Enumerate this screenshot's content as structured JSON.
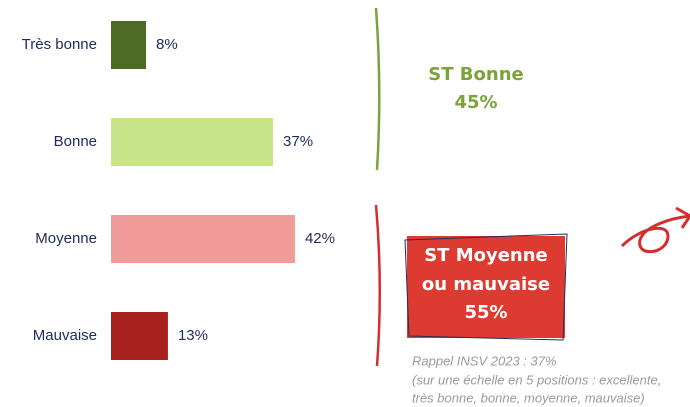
{
  "chart_data": {
    "type": "bar",
    "orientation": "horizontal",
    "categories": [
      "Très bonne",
      "Bonne",
      "Moyenne",
      "Mauvaise"
    ],
    "values": [
      8,
      37,
      42,
      13
    ],
    "value_labels": [
      "8%",
      "37%",
      "42%",
      "13%"
    ],
    "colors": [
      "#4e6b26",
      "#c9e58a",
      "#f09a9a",
      "#a8201e"
    ],
    "annotations": {
      "good": [
        "ST Bonne",
        "45%"
      ],
      "bad": [
        "ST Moyenne",
        "ou mauvaise",
        "55%"
      ],
      "note": [
        "Rappel INSV 2023 : 37%",
        "(sur une échelle en 5 positions : excellente,",
        "très bonne, bonne, moyenne, mauvaise)"
      ]
    }
  }
}
